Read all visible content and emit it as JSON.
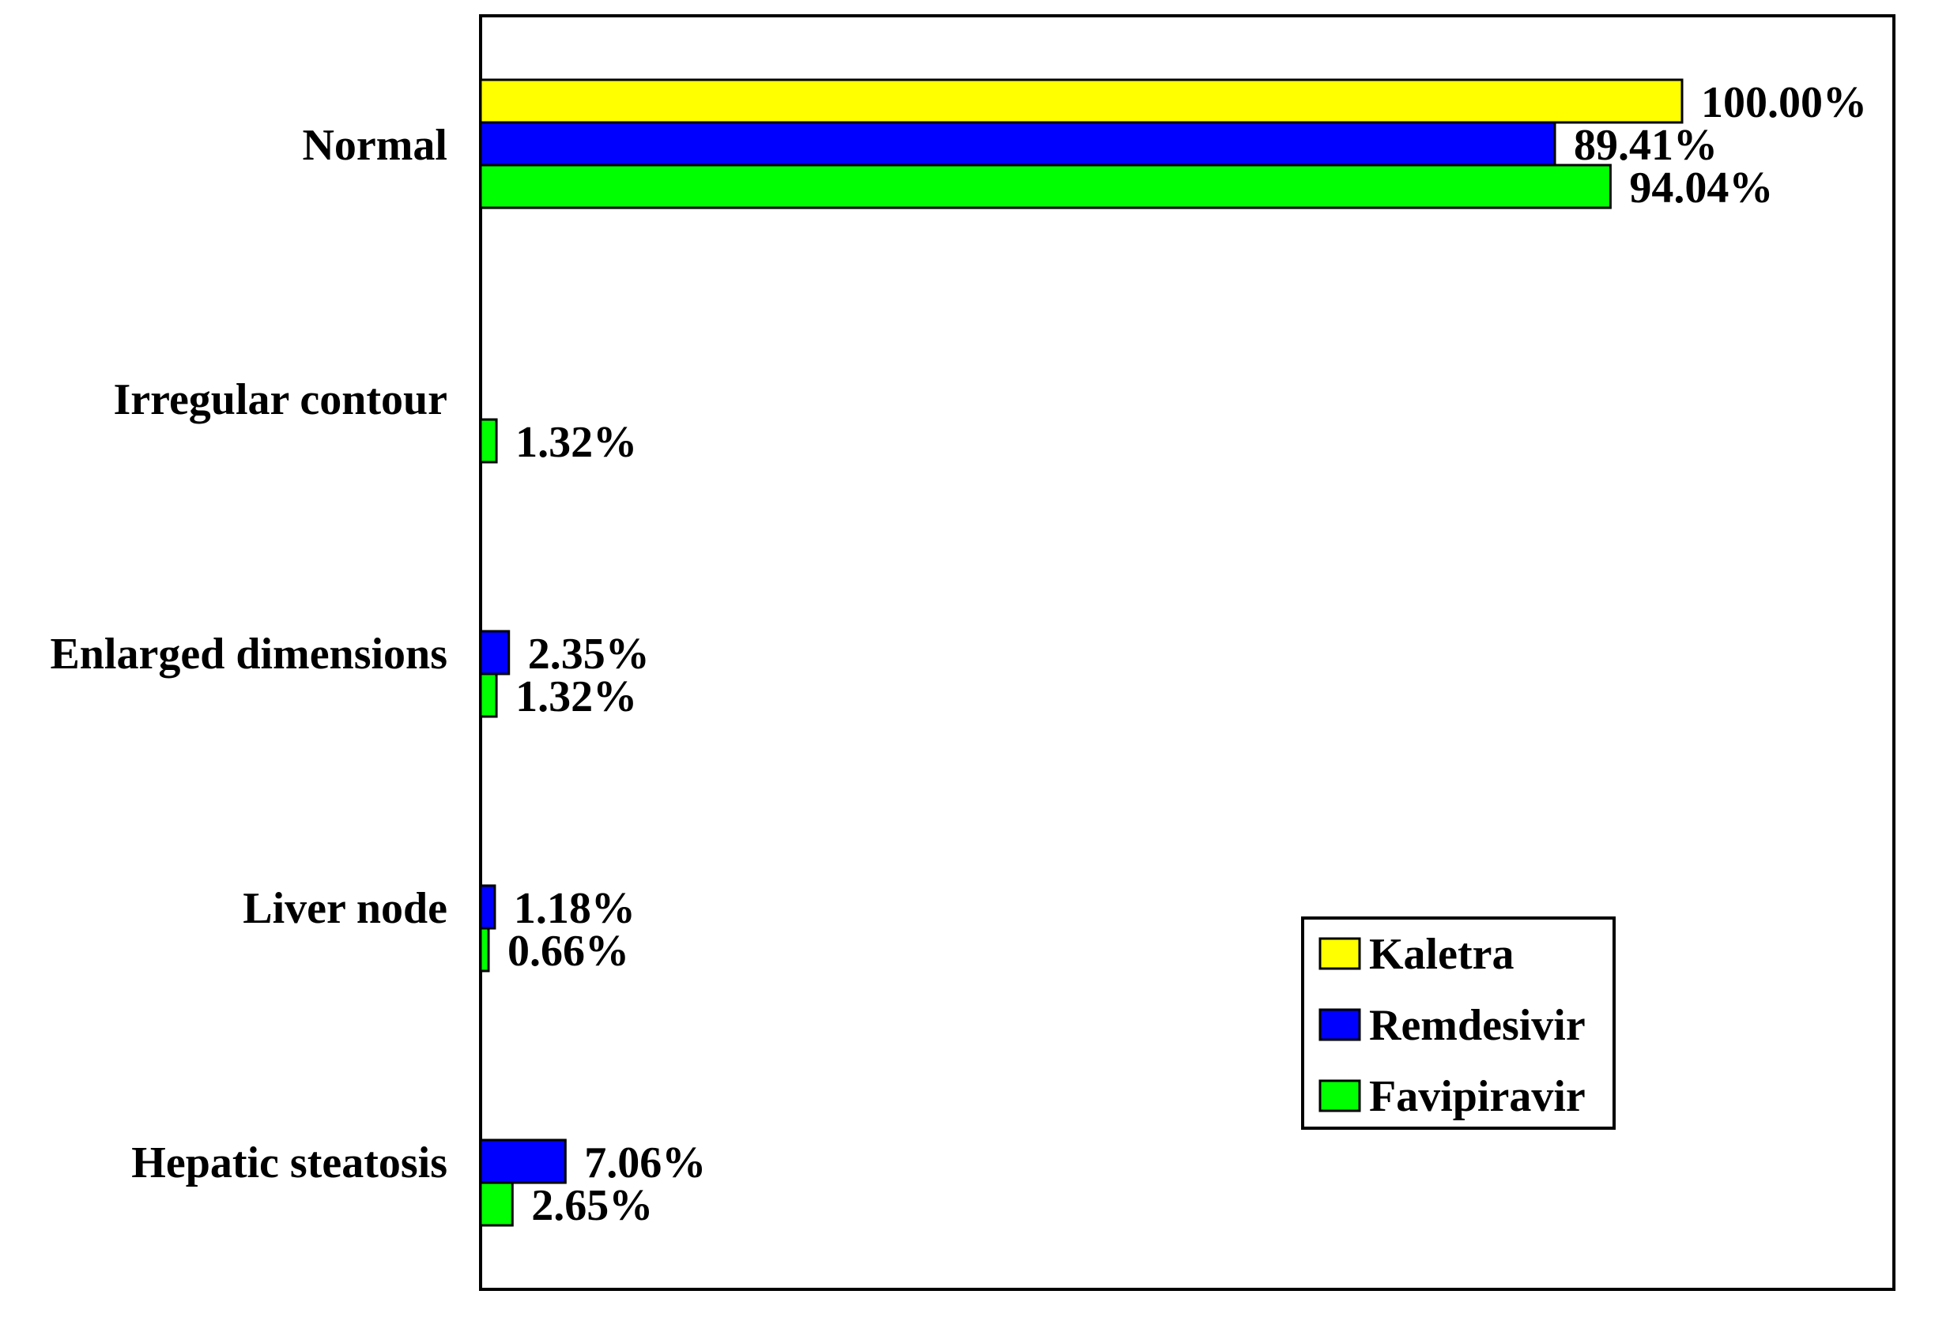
{
  "chart_data": {
    "type": "bar",
    "orientation": "horizontal",
    "title": "",
    "xlabel": "",
    "ylabel": "",
    "xlim": [
      0,
      100
    ],
    "grid": false,
    "legend_position": "bottom-right",
    "categories": [
      "Normal",
      "Irregular contour",
      "Enlarged dimensions",
      "Liver node",
      "Hepatic steatosis"
    ],
    "series": [
      {
        "name": "Kaletra",
        "color": "#FFFF00",
        "values": [
          100.0,
          null,
          null,
          null,
          null
        ],
        "labels": [
          "100.00%",
          "",
          "",
          "",
          ""
        ]
      },
      {
        "name": "Remdesivir",
        "color": "#0000FF",
        "values": [
          89.41,
          null,
          2.35,
          1.18,
          7.06
        ],
        "labels": [
          "89.41%",
          "",
          "2.35%",
          "1.18%",
          "7.06%"
        ]
      },
      {
        "name": "Favipiravir",
        "color": "#00FF00",
        "values": [
          94.04,
          1.32,
          1.32,
          0.66,
          2.65
        ],
        "labels": [
          "94.04%",
          "1.32%",
          "1.32%",
          "0.66%",
          "2.65%"
        ]
      }
    ]
  }
}
